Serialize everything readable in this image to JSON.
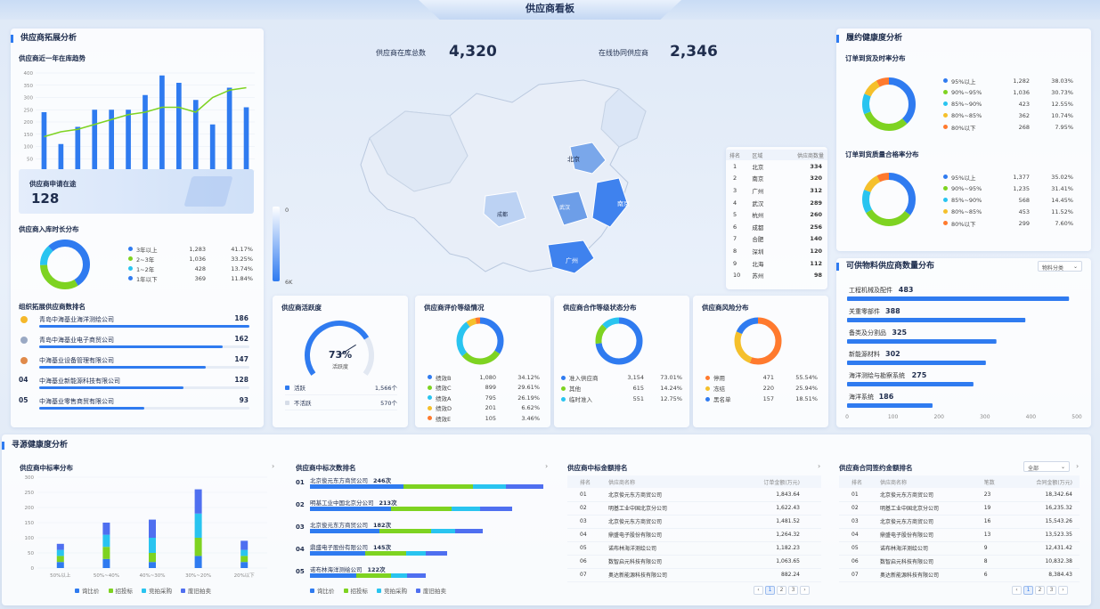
{
  "title": "供应商看板",
  "colors": {
    "blue": "#2f7bf0",
    "green": "#7ed321",
    "cyan": "#29c4f0",
    "yellow": "#f5c02b",
    "orange": "#ff7a2e"
  },
  "top_stats": {
    "total_label": "供应商在库总数",
    "total_value": "4,320",
    "online_label": "在线协同供应商",
    "online_value": "2,346"
  },
  "expand": {
    "title": "供应商拓展分析",
    "trend_title": "供应商近一年在库趋势",
    "chart_data": {
      "type": "bar",
      "x": [
        "2023-08",
        "2023-09",
        "2023-10",
        "2023-11",
        "2023-12",
        "2024-01",
        "2024-02",
        "2024-03",
        "2024-04",
        "2024-05",
        "2024-06",
        "2024-07",
        "2024-08"
      ],
      "x_ticks": [
        "2023-08",
        "2023-10",
        "2023-12",
        "2024-02",
        "2024-04",
        "2024-06"
      ],
      "ylim": [
        0,
        400
      ],
      "yticks": [
        "0",
        "50",
        "100",
        "150",
        "200",
        "250",
        "300",
        "350",
        "400"
      ],
      "series": [
        {
          "name": "供应商数量",
          "type": "bar",
          "values": [
            240,
            110,
            180,
            250,
            250,
            250,
            310,
            390,
            360,
            290,
            190,
            340,
            260
          ]
        },
        {
          "name": "供应商趋势",
          "type": "line",
          "values": [
            140,
            160,
            170,
            190,
            210,
            230,
            240,
            260,
            260,
            240,
            300,
            330,
            340
          ]
        }
      ]
    },
    "apply_label": "供应商申请在途",
    "apply_value": "128",
    "duration_title": "供应商入库时长分布",
    "duration": [
      {
        "label": "3年以上",
        "count": "1,283",
        "pct": "41.17%",
        "v": 41.17,
        "color": "#2f7bf0"
      },
      {
        "label": "2~3年",
        "count": "1,036",
        "pct": "33.25%",
        "v": 33.25,
        "color": "#7ed321"
      },
      {
        "label": "1~2年",
        "count": "428",
        "pct": "13.74%",
        "v": 13.74,
        "color": "#29c4f0"
      },
      {
        "label": "1年以下",
        "count": "369",
        "pct": "11.84%",
        "v": 11.84,
        "color": "#2f7bf0"
      }
    ],
    "rank_title": "组织拓展供应商数排名",
    "rank": [
      {
        "no": "",
        "name": "青岛中海基业海洋测绘公司",
        "value": "186",
        "v": 186
      },
      {
        "no": "",
        "name": "青岛中海基业电子商贸公司",
        "value": "162",
        "v": 162
      },
      {
        "no": "",
        "name": "中海基业设备管理有限公司",
        "value": "147",
        "v": 147
      },
      {
        "no": "04",
        "name": "中海基业新能源科技有限公司",
        "value": "128",
        "v": 128
      },
      {
        "no": "05",
        "name": "中海基业零售商贸有限公司",
        "value": "93",
        "v": 93
      }
    ]
  },
  "map": {
    "labels": [
      "北京",
      "南京",
      "成都",
      "武汉",
      "广州"
    ],
    "legend_max": "6K",
    "legend_min": "0",
    "rank_headers": [
      "排名",
      "区域",
      "供应商数量"
    ],
    "rank": [
      [
        "1",
        "北京",
        "334"
      ],
      [
        "2",
        "南京",
        "320"
      ],
      [
        "3",
        "广州",
        "312"
      ],
      [
        "4",
        "武汉",
        "289"
      ],
      [
        "5",
        "杭州",
        "260"
      ],
      [
        "6",
        "成都",
        "256"
      ],
      [
        "7",
        "合肥",
        "140"
      ],
      [
        "8",
        "深圳",
        "120"
      ],
      [
        "9",
        "北海",
        "112"
      ],
      [
        "10",
        "苏州",
        "98"
      ]
    ]
  },
  "activity": {
    "title": "供应商活跃度",
    "pct": "73%",
    "pct_v": 73,
    "sub": "活跃度",
    "items": [
      {
        "label": "活跃",
        "value": "1,566个",
        "color": "#2f7bf0"
      },
      {
        "label": "不活跃",
        "value": "570个",
        "color": "#d6dde8"
      }
    ]
  },
  "grade": {
    "title": "供应商评价等级情况",
    "items": [
      {
        "label": "绩效B",
        "count": "1,080",
        "pct": "34.12%",
        "v": 34.12,
        "color": "#2f7bf0"
      },
      {
        "label": "绩效C",
        "count": "899",
        "pct": "29.61%",
        "v": 29.61,
        "color": "#7ed321"
      },
      {
        "label": "绩效A",
        "count": "795",
        "pct": "26.19%",
        "v": 26.19,
        "color": "#29c4f0"
      },
      {
        "label": "绩效D",
        "count": "201",
        "pct": "6.62%",
        "v": 6.62,
        "color": "#f5c02b"
      },
      {
        "label": "绩效E",
        "count": "105",
        "pct": "3.46%",
        "v": 3.46,
        "color": "#ff7a2e"
      }
    ]
  },
  "coop": {
    "title": "供应商合作等级状态分布",
    "items": [
      {
        "label": "准入供应商",
        "count": "3,154",
        "pct": "73.01%",
        "v": 73.01,
        "color": "#2f7bf0"
      },
      {
        "label": "其他",
        "count": "615",
        "pct": "14.24%",
        "v": 14.24,
        "color": "#7ed321"
      },
      {
        "label": "临时准入",
        "count": "551",
        "pct": "12.75%",
        "v": 12.75,
        "color": "#29c4f0"
      }
    ]
  },
  "risk": {
    "title": "供应商风险分布",
    "items": [
      {
        "label": "停用",
        "count": "471",
        "pct": "55.54%",
        "v": 55.54,
        "color": "#ff7a2e"
      },
      {
        "label": "冻结",
        "count": "220",
        "pct": "25.94%",
        "v": 25.94,
        "color": "#f5c02b"
      },
      {
        "label": "黑名单",
        "count": "157",
        "pct": "18.51%",
        "v": 18.51,
        "color": "#2f7bf0"
      }
    ]
  },
  "health": {
    "title": "履约健康度分析",
    "ontime_title": "订单到货及时率分布",
    "ontime": [
      {
        "label": "95%以上",
        "count": "1,282",
        "pct": "38.03%",
        "v": 38.03,
        "color": "#2f7bf0"
      },
      {
        "label": "90%~95%",
        "count": "1,036",
        "pct": "30.73%",
        "v": 30.73,
        "color": "#7ed321"
      },
      {
        "label": "85%~90%",
        "count": "423",
        "pct": "12.55%",
        "v": 12.55,
        "color": "#29c4f0"
      },
      {
        "label": "80%~85%",
        "count": "362",
        "pct": "10.74%",
        "v": 10.74,
        "color": "#f5c02b"
      },
      {
        "label": "80%以下",
        "count": "268",
        "pct": "7.95%",
        "v": 7.95,
        "color": "#ff7a2e"
      }
    ],
    "quality_title": "订单到货质量合格率分布",
    "quality": [
      {
        "label": "95%以上",
        "count": "1,377",
        "pct": "35.02%",
        "v": 35.02,
        "color": "#2f7bf0"
      },
      {
        "label": "90%~95%",
        "count": "1,235",
        "pct": "31.41%",
        "v": 31.41,
        "color": "#7ed321"
      },
      {
        "label": "85%~90%",
        "count": "568",
        "pct": "14.45%",
        "v": 14.45,
        "color": "#29c4f0"
      },
      {
        "label": "80%~85%",
        "count": "453",
        "pct": "11.52%",
        "v": 11.52,
        "color": "#f5c02b"
      },
      {
        "label": "80%以下",
        "count": "299",
        "pct": "7.60%",
        "v": 7.6,
        "color": "#ff7a2e"
      }
    ]
  },
  "material": {
    "title": "可供物料供应商数量分布",
    "select": "物料分类",
    "xticks": [
      "0",
      "100",
      "200",
      "300",
      "400",
      "500"
    ],
    "xmax": 500,
    "items": [
      {
        "label": "工程机械及配件",
        "value": "483",
        "v": 483
      },
      {
        "label": "关重零部件",
        "value": "388",
        "v": 388
      },
      {
        "label": "备类及分割品",
        "value": "325",
        "v": 325
      },
      {
        "label": "新能源材料",
        "value": "302",
        "v": 302
      },
      {
        "label": "海洋测绘与勘察系统",
        "value": "275",
        "v": 275
      },
      {
        "label": "海洋系统",
        "value": "186",
        "v": 186
      }
    ]
  },
  "sourcing": {
    "title": "寻源健康度分析",
    "bid_title": "供应商中标率分布",
    "bid_chart": {
      "type": "bar",
      "categories": [
        "50%以上",
        "50%~40%",
        "40%~30%",
        "30%~20%",
        "20%以下"
      ],
      "ylim": [
        0,
        300
      ],
      "yticks": [
        "0",
        "50",
        "100",
        "150",
        "200",
        "250",
        "300"
      ],
      "series": [
        {
          "name": "询比价",
          "values": [
            20,
            30,
            20,
            40,
            20
          ]
        },
        {
          "name": "招投标",
          "values": [
            20,
            40,
            30,
            60,
            20
          ]
        },
        {
          "name": "竞拍采购",
          "values": [
            20,
            40,
            50,
            80,
            20
          ]
        },
        {
          "name": "废旧拍卖",
          "values": [
            20,
            40,
            60,
            80,
            30
          ]
        }
      ]
    },
    "count_title": "供应商中标次数排名",
    "count_rank": [
      {
        "no": "01",
        "name": "北京俊元东方商贸公司",
        "value": "246次",
        "v": 246
      },
      {
        "no": "02",
        "name": "明基工业中国北京分公司",
        "value": "213次",
        "v": 213
      },
      {
        "no": "03",
        "name": "北京俊元东方商贸公司",
        "value": "182次",
        "v": 182
      },
      {
        "no": "04",
        "name": "鼎盛电子股份有限公司",
        "value": "145次",
        "v": 145
      },
      {
        "no": "05",
        "name": "诺布林海洋测绘公司",
        "value": "122次",
        "v": 122
      }
    ],
    "legend": [
      "询比价",
      "招投标",
      "竞拍采购",
      "废旧拍卖"
    ],
    "amount_title": "供应商中标金额排名",
    "amount_headers": [
      "排名",
      "供应商名称",
      "订单金额(万元)"
    ],
    "amount": [
      [
        "01",
        "北京俊元东方商贸公司",
        "1,843.64"
      ],
      [
        "02",
        "明基工业中国北京分公司",
        "1,622.43"
      ],
      [
        "03",
        "北京俊元东方商贸公司",
        "1,481.52"
      ],
      [
        "04",
        "鼎盛电子股份有限公司",
        "1,264.32"
      ],
      [
        "05",
        "诺布林海洋测绘公司",
        "1,182.23"
      ],
      [
        "06",
        "数智启元科技有限公司",
        "1,063.65"
      ],
      [
        "07",
        "奥达新能源科技有限公司",
        "882.24"
      ]
    ],
    "contract_title": "供应商合同签约金额排名",
    "contract_select": "全部",
    "contract_headers": [
      "排名",
      "供应商名称",
      "笔数",
      "合同金额(万元)"
    ],
    "contract": [
      [
        "01",
        "北京俊元东方商贸公司",
        "23",
        "18,342.64"
      ],
      [
        "02",
        "明基工业中国北京分公司",
        "19",
        "16,235.32"
      ],
      [
        "03",
        "北京俊元东方商贸公司",
        "16",
        "15,543.26"
      ],
      [
        "04",
        "鼎盛电子股份有限公司",
        "13",
        "13,523.35"
      ],
      [
        "05",
        "诺布林海洋测绘公司",
        "9",
        "12,431.42"
      ],
      [
        "06",
        "数智启元科技有限公司",
        "8",
        "10,832.38"
      ],
      [
        "07",
        "奥达新能源科技有限公司",
        "6",
        "8,384.43"
      ]
    ],
    "pages": [
      "1",
      "2",
      "3"
    ]
  }
}
